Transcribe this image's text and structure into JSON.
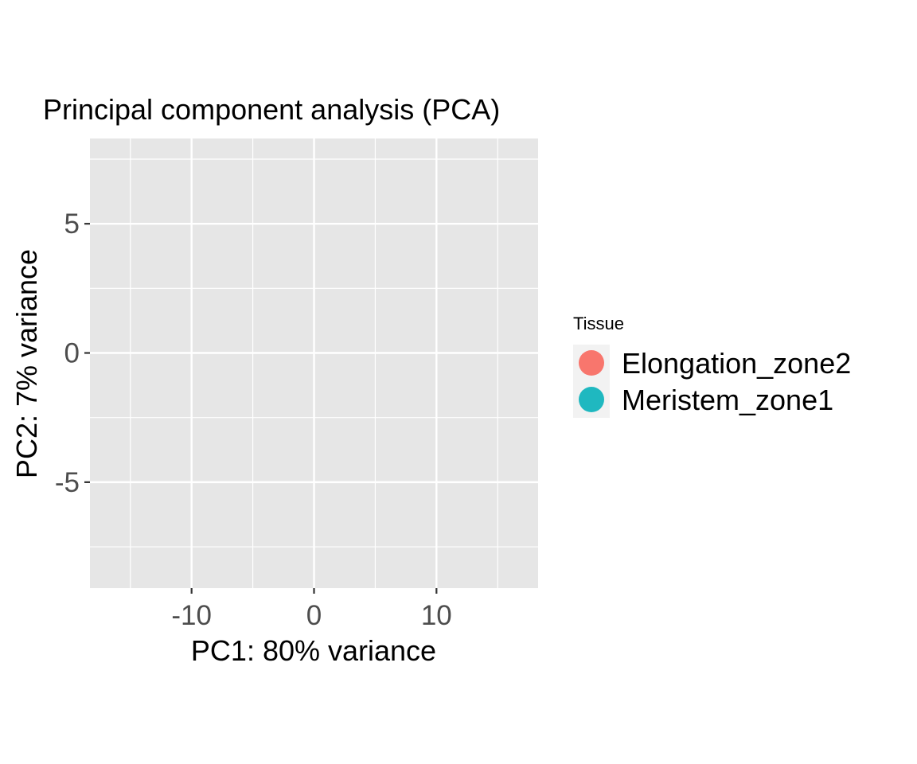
{
  "chart_data": {
    "type": "scatter",
    "title": "Principal component analysis (PCA)",
    "xlabel": "PC1: 80% variance",
    "ylabel": "PC2: 7% variance",
    "xlim": [
      -18.3,
      18.3
    ],
    "ylim": [
      -9.1,
      8.3
    ],
    "x_ticks": [
      -10,
      0,
      10
    ],
    "y_ticks": [
      -5,
      0,
      5
    ],
    "x_minor": [
      -15,
      -5,
      5,
      15
    ],
    "y_minor": [
      -7.5,
      -2.5,
      2.5,
      7.5
    ],
    "grid": true,
    "panel_color": "#e6e6e6",
    "legend": {
      "title": "Tissue",
      "placement": "right"
    },
    "series": [
      {
        "name": "Elongation_zone2",
        "color": "#f8766d",
        "points": []
      },
      {
        "name": "Meristem_zone1",
        "color": "#1fb8c0",
        "points": []
      }
    ]
  }
}
